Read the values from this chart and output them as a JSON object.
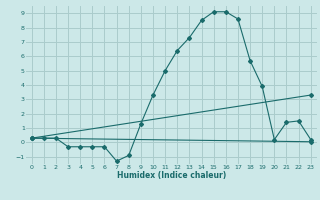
{
  "xlabel": "Humidex (Indice chaleur)",
  "background_color": "#cce8e8",
  "grid_color": "#aacccc",
  "line_color": "#1a6b6b",
  "xlim": [
    -0.5,
    23.5
  ],
  "ylim": [
    -1.5,
    9.5
  ],
  "yticks": [
    -1,
    0,
    1,
    2,
    3,
    4,
    5,
    6,
    7,
    8,
    9
  ],
  "xticks": [
    0,
    1,
    2,
    3,
    4,
    5,
    6,
    7,
    8,
    9,
    10,
    11,
    12,
    13,
    14,
    15,
    16,
    17,
    18,
    19,
    20,
    21,
    22,
    23
  ],
  "series1_x": [
    0,
    1,
    2,
    3,
    4,
    5,
    6,
    7,
    8,
    9,
    10,
    11,
    12,
    13,
    14,
    15,
    16,
    17,
    18,
    19,
    20,
    21,
    22,
    23
  ],
  "series1_y": [
    0.3,
    0.3,
    0.3,
    -0.3,
    -0.3,
    -0.3,
    -0.3,
    -1.3,
    -0.9,
    1.3,
    3.3,
    5.0,
    6.4,
    7.3,
    8.5,
    9.1,
    9.1,
    8.6,
    5.7,
    3.9,
    0.2,
    1.4,
    1.5,
    0.2
  ],
  "series2_x": [
    0,
    23
  ],
  "series2_y": [
    0.3,
    3.3
  ],
  "series3_x": [
    0,
    23
  ],
  "series3_y": [
    0.3,
    0.05
  ]
}
